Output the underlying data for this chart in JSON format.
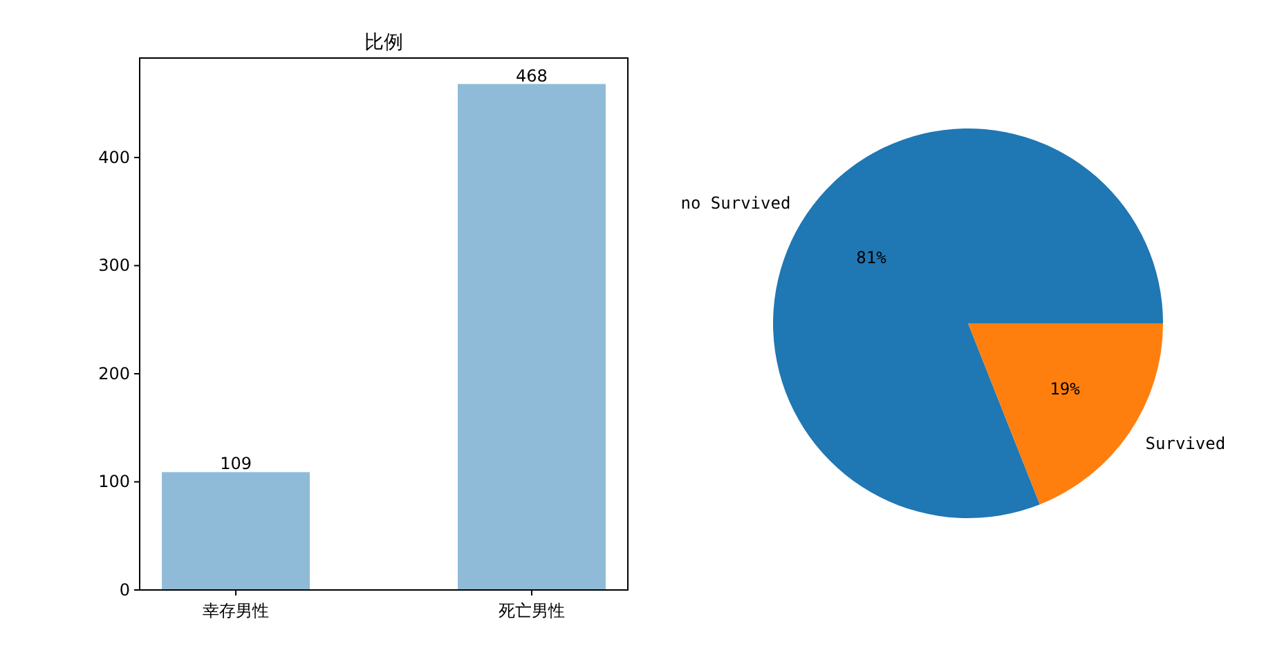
{
  "chart_data": [
    {
      "type": "bar",
      "title": "比例",
      "categories": [
        "幸存男性",
        "死亡男性"
      ],
      "values": [
        109,
        468
      ],
      "color": "#8fbbd9",
      "ylim": [
        0,
        492
      ],
      "yticks": [
        0,
        100,
        200,
        300,
        400
      ],
      "data_labels": true,
      "grid": false
    },
    {
      "type": "pie",
      "categories": [
        "no Survived",
        "Survived"
      ],
      "values": [
        81,
        19
      ],
      "colors": [
        "#1f77b4",
        "#ff7f0e"
      ],
      "value_labels": [
        "81%",
        "19%"
      ],
      "legend": false
    }
  ]
}
